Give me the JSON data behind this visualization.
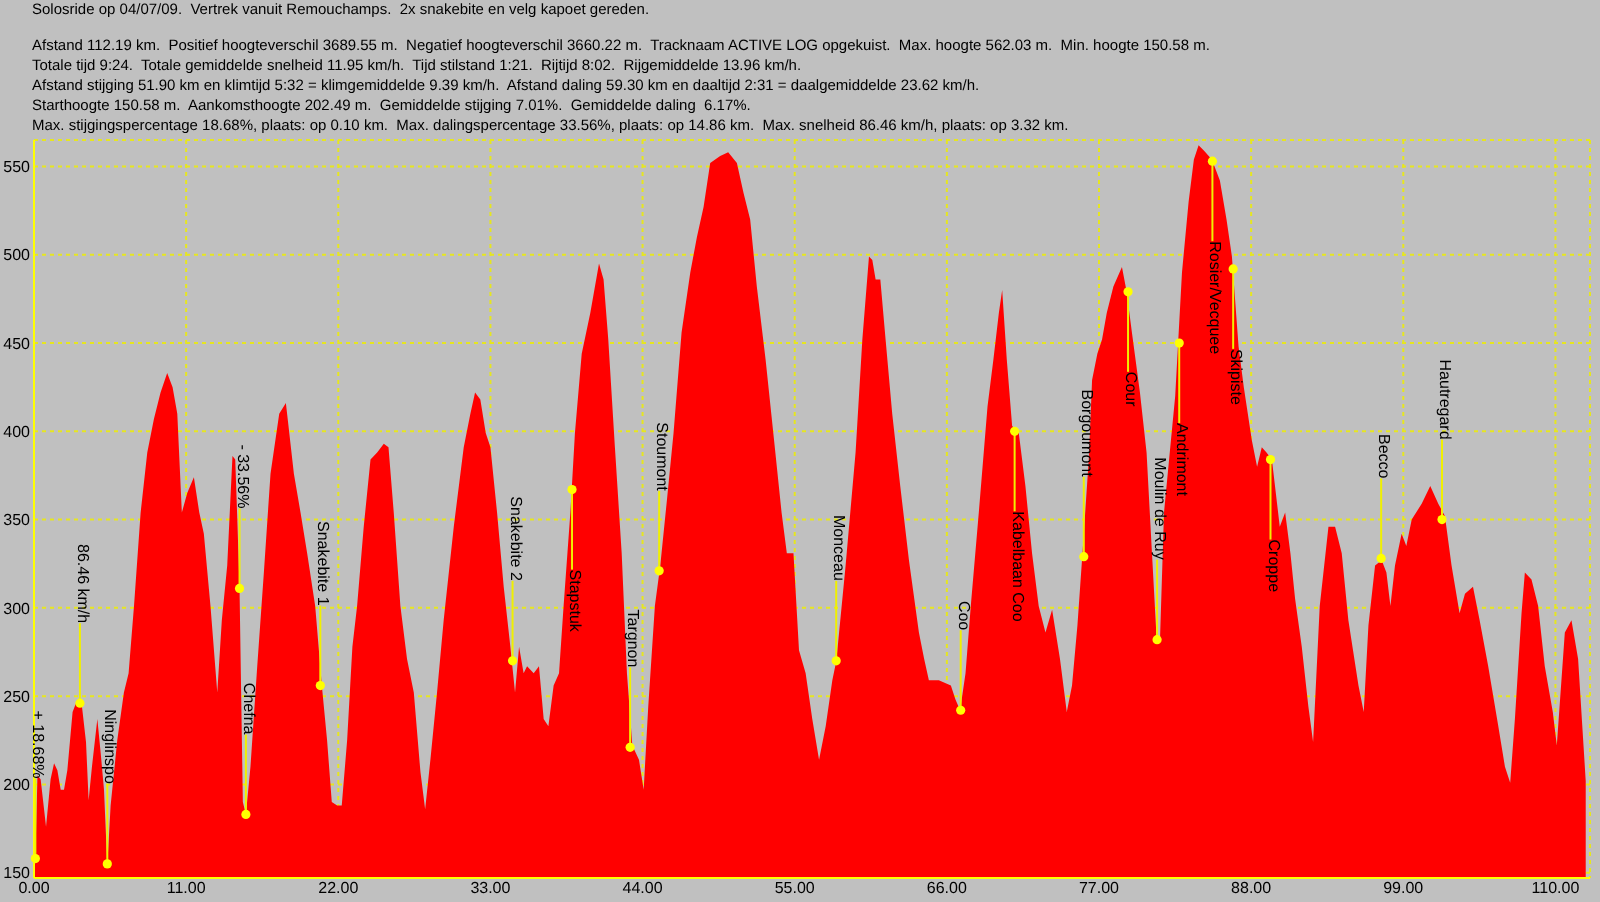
{
  "chart_data": {
    "type": "area",
    "title": "Solosride op 04/07/09.  Vertrek vanuit Remouchamps.  2x snakebite en velg kapoet gereden.",
    "annotations": [
      "Afstand 112.19 km.  Positief hoogteverschil 3689.55 m.  Negatief hoogteverschil 3660.22 m.  Tracknaam ACTIVE LOG opgekuist.  Max. hoogte 562.03 m.  Min. hoogte 150.58 m.",
      "Totale tijd 9:24.  Totale gemiddelde snelheid 11.95 km/h.  Tijd stilstand 1:21.  Rijtijd 8:02.  Rijgemiddelde 13.96 km/h.",
      "Afstand stijging 51.90 km en klimtijd 5:32 = klimgemiddelde 9.39 km/h.  Afstand daling 59.30 km en daaltijd 2:31 = daalgemiddelde 23.62 km/h.",
      "Starthoogte 150.58 m.  Aankomsthoogte 202.49 m.  Gemiddelde stijging 7.01%.  Gemiddelde daling  6.17%.",
      "Max. stijgingspercentage 18.68%, plaats: op 0.10 km.  Max. dalingspercentage 33.56%, plaats: op 14.86 km.  Max. snelheid 86.46 km/h, plaats: op 3.32 km.",
      {
        "text": "+ 18.68%",
        "x": 0.1,
        "y": 158
      },
      {
        "text": "86.46 km/h",
        "x": 3.32,
        "y": 246
      },
      {
        "text": "Ninglinspo",
        "x": 5.3,
        "y": 155
      },
      {
        "text": "- 33.56%",
        "x": 14.86,
        "y": 311
      },
      {
        "text": "Chefna",
        "x": 15.32,
        "y": 183
      },
      {
        "text": "Snakebite 1",
        "x": 20.7,
        "y": 256
      },
      {
        "text": "Snakebite 2",
        "x": 34.6,
        "y": 270
      },
      {
        "text": "Stapstuk",
        "x": 38.9,
        "y": 367
      },
      {
        "text": "Targnon",
        "x": 43.1,
        "y": 221
      },
      {
        "text": "Stoumont",
        "x": 45.2,
        "y": 321
      },
      {
        "text": "Monceau",
        "x": 58.0,
        "y": 270
      },
      {
        "text": "Coo",
        "x": 67.0,
        "y": 242
      },
      {
        "text": "Kabelbaan Coo",
        "x": 70.9,
        "y": 400
      },
      {
        "text": "Borgoumont",
        "x": 75.9,
        "y": 329
      },
      {
        "text": "Cour",
        "x": 79.1,
        "y": 479
      },
      {
        "text": "Moulin de Ruy",
        "x": 81.2,
        "y": 282
      },
      {
        "text": "Andrimont",
        "x": 82.8,
        "y": 450
      },
      {
        "text": "Rosier/Vecquee",
        "x": 85.2,
        "y": 553
      },
      {
        "text": "Skipiste",
        "x": 86.7,
        "y": 492
      },
      {
        "text": "Croppe",
        "x": 89.4,
        "y": 384
      },
      {
        "text": "Becco",
        "x": 97.4,
        "y": 328
      },
      {
        "text": "Hautregard",
        "x": 101.8,
        "y": 350
      }
    ],
    "x": [
      0,
      0.1,
      0.25,
      0.48,
      0.87,
      1.2,
      1.45,
      1.69,
      1.93,
      2.17,
      2.41,
      2.79,
      3.13,
      3.47,
      3.76,
      3.95,
      4.19,
      4.58,
      4.82,
      5.06,
      5.3,
      5.54,
      6.02,
      6.5,
      6.84,
      7.23,
      7.71,
      8.19,
      8.67,
      9.15,
      9.63,
      10.02,
      10.36,
      10.69,
      11.08,
      11.56,
      11.95,
      12.28,
      12.76,
      13.25,
      13.58,
      13.97,
      14.35,
      14.55,
      14.7,
      14.86,
      15.1,
      15.32,
      15.65,
      16.14,
      16.62,
      17.1,
      17.73,
      18.21,
      18.4,
      18.79,
      19.27,
      19.75,
      20.33,
      20.81,
      21.19,
      21.53,
      21.92,
      22.25,
      22.64,
      23.02,
      23.36,
      23.84,
      24.33,
      24.81,
      25.29,
      25.63,
      26.01,
      26.49,
      26.97,
      27.46,
      27.94,
      28.28,
      28.66,
      29.14,
      29.62,
      30.35,
      31.07,
      31.55,
      31.89,
      32.27,
      32.66,
      33.0,
      33.48,
      33.96,
      34.44,
      34.78,
      35.07,
      35.4,
      35.65,
      36.13,
      36.51,
      36.85,
      37.19,
      37.57,
      37.96,
      38.29,
      38.78,
      39.11,
      39.6,
      40.22,
      40.85,
      41.18,
      41.52,
      42.0,
      42.49,
      42.87,
      43.26,
      43.74,
      44.08,
      44.41,
      44.89,
      45.28,
      45.76,
      46.24,
      46.82,
      47.45,
      47.93,
      48.41,
      48.89,
      49.61,
      50.19,
      50.82,
      51.3,
      51.78,
      52.26,
      52.89,
      53.56,
      54.05,
      54.43,
      54.91,
      55.31,
      55.79,
      56.27,
      56.76,
      57.24,
      57.72,
      58.01,
      58.68,
      59.4,
      59.89,
      60.37,
      60.61,
      60.85,
      61.19,
      61.57,
      62.05,
      62.63,
      63.26,
      63.98,
      64.36,
      64.7,
      65.42,
      66.29,
      66.63,
      66.96,
      67.35,
      67.73,
      68.31,
      68.94,
      69.37,
      69.76,
      70.0,
      70.33,
      70.72,
      71.2,
      71.68,
      72.16,
      72.64,
      73.13,
      73.61,
      74.18,
      74.67,
      75.05,
      75.44,
      75.77,
      76.26,
      76.5,
      76.88,
      77.22,
      77.56,
      78.04,
      78.66,
      79.0,
      79.38,
      79.96,
      80.44,
      80.83,
      81.17,
      81.41,
      81.7,
      82.08,
      82.51,
      83.0,
      83.48,
      83.86,
      84.2,
      84.58,
      85.16,
      85.74,
      86.22,
      86.61,
      87.09,
      87.47,
      88.05,
      88.43,
      88.77,
      89.11,
      89.5,
      90.07,
      90.46,
      90.84,
      91.18,
      91.66,
      92.14,
      92.48,
      92.96,
      93.59,
      94.07,
      94.55,
      95.03,
      95.76,
      96.14,
      96.48,
      96.96,
      97.44,
      97.78,
      98.07,
      98.4,
      98.88,
      99.22,
      99.61,
      100.33,
      100.95,
      101.53,
      102.01,
      102.49,
      103.07,
      103.46,
      104.04,
      104.52,
      105.14,
      105.87,
      106.35,
      106.73,
      107.07,
      107.55,
      107.79,
      108.27,
      108.75,
      109.23,
      109.81,
      110.1,
      110.68,
      111.16,
      111.64,
      112.19
    ],
    "values": [
      151,
      158,
      205,
      203,
      176,
      203,
      212,
      208,
      197,
      197,
      208,
      241,
      248,
      244,
      224,
      191,
      210,
      237,
      218,
      197,
      154,
      188,
      225,
      252,
      263,
      301,
      354,
      388,
      407,
      422,
      433,
      425,
      410,
      354,
      365,
      374,
      354,
      342,
      301,
      252,
      293,
      324,
      386,
      384,
      350,
      311,
      190,
      183,
      210,
      267,
      320,
      376,
      410,
      416,
      403,
      376,
      354,
      331,
      301,
      256,
      225,
      190,
      188,
      188,
      225,
      278,
      301,
      346,
      384,
      388,
      393,
      391,
      354,
      301,
      271,
      252,
      207,
      186,
      214,
      252,
      293,
      346,
      391,
      410,
      422,
      418,
      399,
      391,
      354,
      312,
      278,
      252,
      278,
      263,
      267,
      263,
      267,
      237,
      233,
      256,
      263,
      301,
      354,
      399,
      444,
      467,
      495,
      486,
      452,
      391,
      331,
      263,
      222,
      214,
      197,
      244,
      301,
      324,
      361,
      399,
      456,
      490,
      510,
      527,
      552,
      556,
      558,
      552,
      535,
      520,
      482,
      441,
      391,
      354,
      331,
      331,
      276,
      263,
      237,
      214,
      233,
      259,
      270,
      324,
      388,
      452,
      499,
      497,
      486,
      486,
      452,
      410,
      369,
      327,
      286,
      271,
      259,
      259,
      256,
      248,
      242,
      263,
      301,
      354,
      414,
      441,
      467,
      480,
      441,
      403,
      399,
      369,
      331,
      301,
      286,
      299,
      271,
      241,
      256,
      290,
      327,
      384,
      429,
      444,
      452,
      467,
      482,
      493,
      479,
      456,
      422,
      388,
      331,
      282,
      282,
      354,
      385,
      420,
      490,
      530,
      554,
      562,
      559,
      554,
      542,
      520,
      499,
      448,
      425,
      395,
      380,
      391,
      388,
      384,
      346,
      354,
      331,
      305,
      278,
      244,
      224,
      301,
      346,
      346,
      331,
      293,
      256,
      241,
      290,
      324,
      327,
      320,
      301,
      324,
      342,
      335,
      350,
      359,
      369,
      359,
      352,
      324,
      297,
      308,
      312,
      293,
      267,
      233,
      210,
      201,
      237,
      297,
      320,
      316,
      301,
      267,
      241,
      222,
      286,
      293,
      271,
      202
    ],
    "color": "#ff0000",
    "xlim": [
      0,
      112.5
    ],
    "xticks": [
      {
        "value": 0,
        "label": "0.00"
      },
      {
        "value": 11,
        "label": "11.00"
      },
      {
        "value": 22,
        "label": "22.00"
      },
      {
        "value": 33,
        "label": "33.00"
      },
      {
        "value": 44,
        "label": "44.00"
      },
      {
        "value": 55,
        "label": "55.00"
      },
      {
        "value": 66,
        "label": "66.00"
      },
      {
        "value": 77,
        "label": "77.00"
      },
      {
        "value": 88,
        "label": "88.00"
      },
      {
        "value": 99,
        "label": "99.00"
      },
      {
        "value": 110,
        "label": "110.00"
      }
    ],
    "ylim": [
      147,
      565
    ],
    "yticks": [
      150,
      200,
      250,
      300,
      350,
      400,
      450,
      500,
      550
    ],
    "grid": true
  }
}
